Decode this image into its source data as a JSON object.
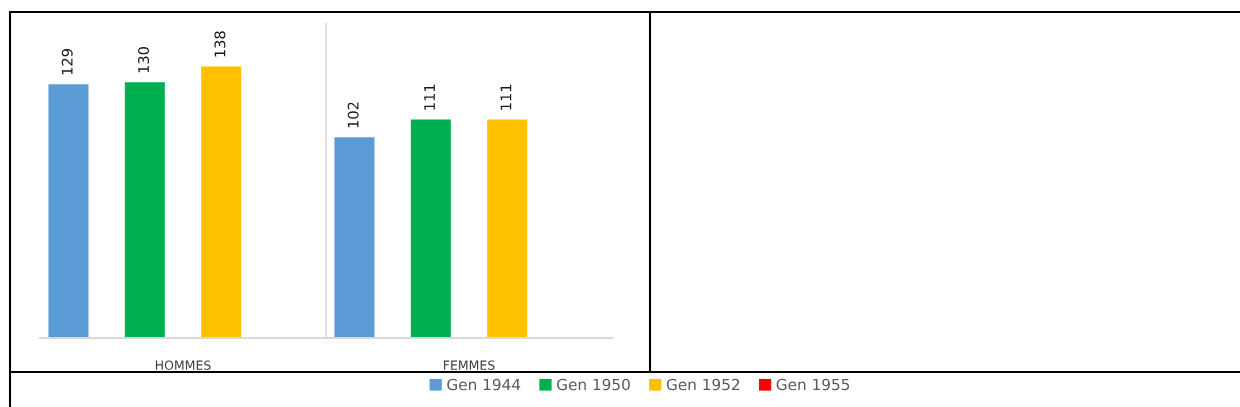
{
  "chart_data": {
    "type": "bar",
    "categories": [
      "HOMMES",
      "FEMMES"
    ],
    "series": [
      {
        "name": "Gen 1944",
        "color": "#5b9bd5",
        "values": [
          129,
          102
        ]
      },
      {
        "name": "Gen 1950",
        "color": "#00b050",
        "values": [
          130,
          111
        ]
      },
      {
        "name": "Gen 1952",
        "color": "#ffc000",
        "values": [
          138,
          111
        ]
      },
      {
        "name": "Gen 1955",
        "color": "#ff0000",
        "values": [
          null,
          null
        ]
      }
    ],
    "data_labels": true,
    "grid": "x",
    "legend": "bottom"
  }
}
